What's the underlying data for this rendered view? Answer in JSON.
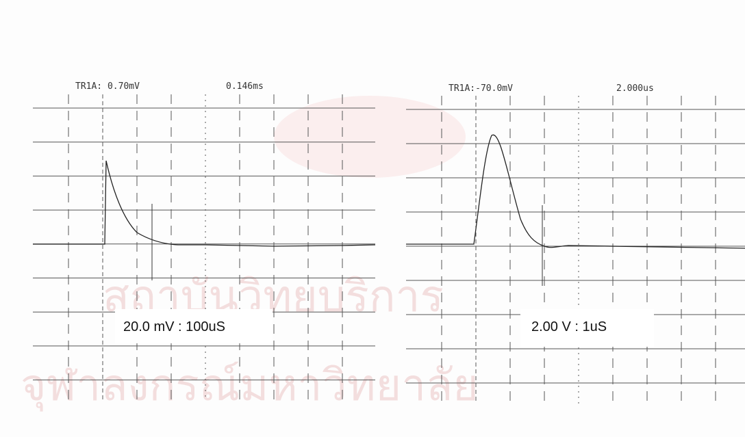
{
  "panels": [
    {
      "trigger": "TR1A: 0.70mV",
      "time": "0.146ms",
      "scale": "20.0 mV : 100uS"
    },
    {
      "trigger": "TR1A:-70.0mV",
      "time": "2.000us",
      "scale": "2.00 V : 1uS"
    }
  ],
  "watermark": {
    "line1": "สถาบันวิทยบริการ",
    "line2": "จุฬาลงกรณ์มหาวิทยาลัย"
  }
}
